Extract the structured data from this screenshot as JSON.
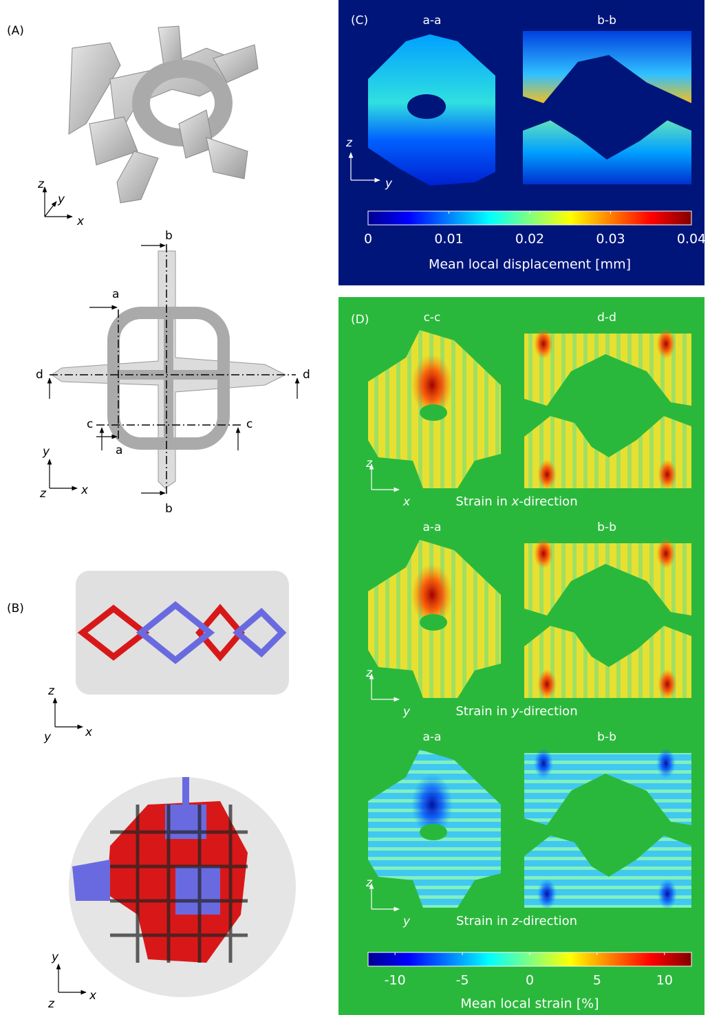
{
  "panel_a": {
    "label": "(A)",
    "axes_top": {
      "z": "z",
      "y": "y",
      "x": "x"
    },
    "section_marks": {
      "b_top": "b",
      "a_top": "a",
      "d_left": "d",
      "d_right": "d",
      "c_left": "c",
      "c_right": "c",
      "a_bottom": "a",
      "b_bottom": "b"
    },
    "axes_bottom": {
      "y": "y",
      "z": "z",
      "x": "x"
    }
  },
  "panel_b": {
    "label": "(B)",
    "axes_top": {
      "z": "z",
      "y": "y",
      "x": "x"
    },
    "axes_bottom": {
      "y": "y",
      "z": "z",
      "x": "x"
    }
  },
  "panel_c": {
    "label": "(C)",
    "sections": [
      "a-a",
      "b-b"
    ],
    "axes": {
      "v": "z",
      "h": "y"
    },
    "colorbar": {
      "lim": [
        0,
        0.04
      ],
      "ticks": [
        0,
        0.01,
        0.02,
        0.03,
        0.04
      ],
      "label": "Mean local displacement [mm]"
    }
  },
  "panel_d": {
    "label": "(D)",
    "rows": [
      {
        "sections": [
          "c-c",
          "d-d"
        ],
        "axes": {
          "v": "z",
          "h": "x"
        },
        "caption": {
          "before": "Strain in ",
          "axis": "x",
          "after": "-direction"
        }
      },
      {
        "sections": [
          "a-a",
          "b-b"
        ],
        "axes": {
          "v": "z",
          "h": "y"
        },
        "caption": {
          "before": "Strain in ",
          "axis": "y",
          "after": "-direction"
        }
      },
      {
        "sections": [
          "a-a",
          "b-b"
        ],
        "axes": {
          "v": "z",
          "h": "y"
        },
        "caption": {
          "before": "Strain in ",
          "axis": "z",
          "after": "-direction"
        }
      }
    ],
    "colorbar": {
      "lim": [
        -12,
        12
      ],
      "ticks": [
        -10,
        -5,
        0,
        5,
        10
      ],
      "label": "Mean local strain [%]"
    }
  }
}
